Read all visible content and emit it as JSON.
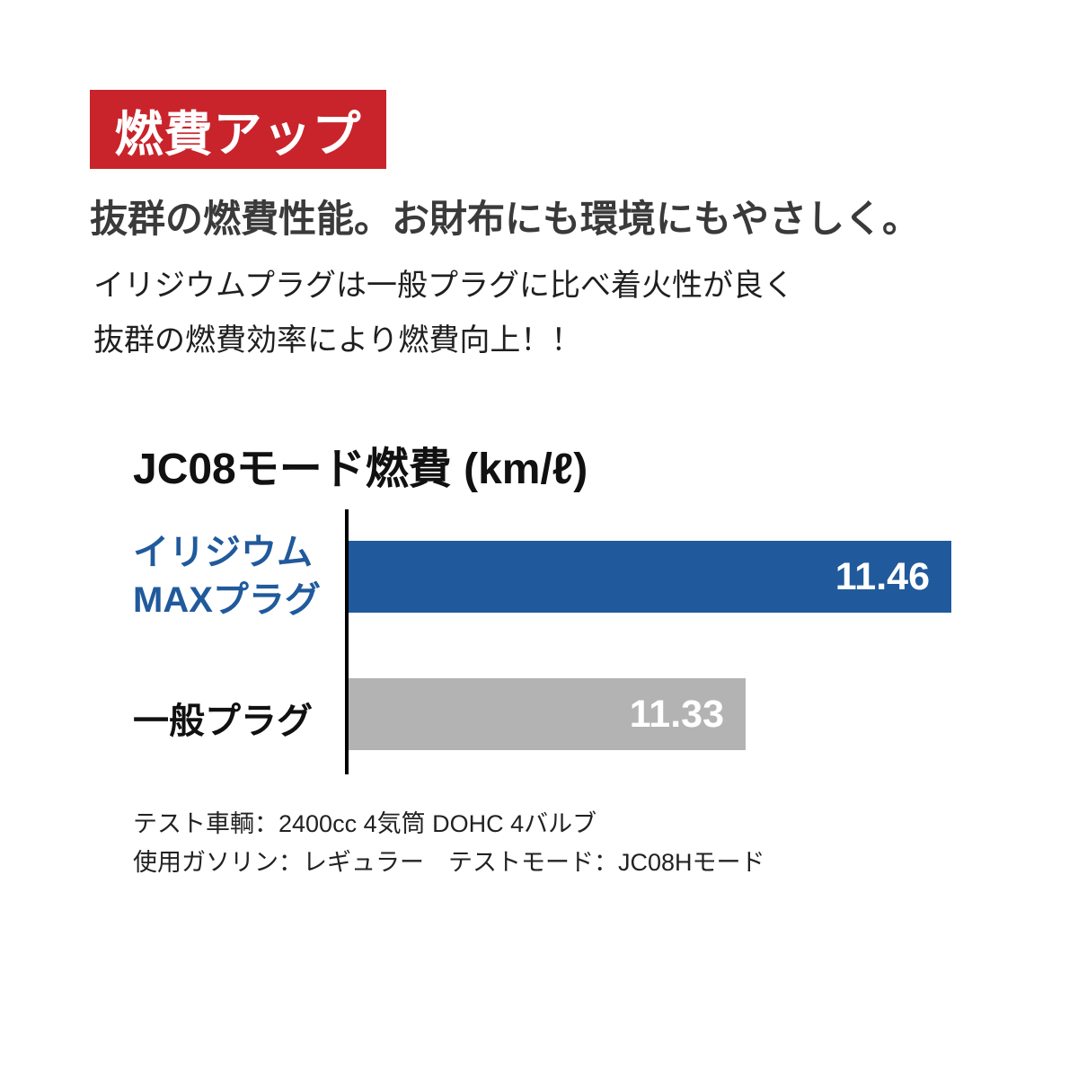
{
  "badge": {
    "label": "燃費アップ",
    "bg_color": "#c9242b"
  },
  "headline": "抜群の燃費性能。お財布にも環境にもやさしく。",
  "description": {
    "line1": "イリジウムプラグは一般プラグに比べ着火性が良く",
    "line2": "抜群の燃費効率により燃費向上！！"
  },
  "chart_data": {
    "type": "bar",
    "orientation": "horizontal",
    "title": "JC08モード燃費 (km/ℓ)",
    "categories": [
      "イリジウムMAXプラグ",
      "一般プラグ"
    ],
    "values": [
      11.46,
      11.33
    ],
    "value_labels": [
      "11.46",
      "11.33"
    ],
    "series_colors": [
      "#205a9c",
      "#b3b3b3"
    ],
    "category_label_lines": [
      [
        "イリジウム",
        "MAXプラグ"
      ],
      [
        "一般プラグ"
      ]
    ],
    "xlabel": "",
    "ylabel": "",
    "grid": false,
    "legend": false,
    "value_label_position": "inside-end",
    "axis_color": "#000000"
  },
  "footnotes": {
    "line1": "テスト車輌：2400cc 4気筒 DOHC 4バルブ",
    "line2": "使用ガソリン：レギュラー　テストモード：JC08Hモード"
  }
}
